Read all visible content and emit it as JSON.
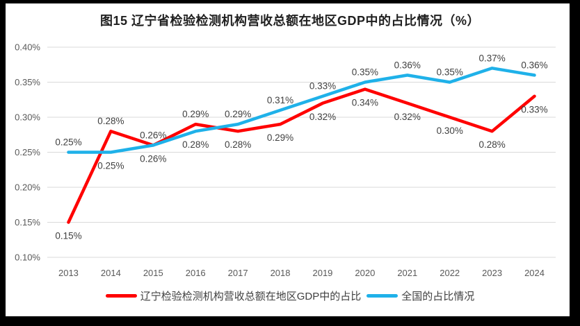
{
  "chart_data": {
    "type": "line",
    "title": "图15 辽宁省检验检测机构营收总额在地区GDP中的占比情况（%）",
    "categories": [
      "2013",
      "2014",
      "2015",
      "2016",
      "2017",
      "2018",
      "2019",
      "2020",
      "2021",
      "2022",
      "2023",
      "2024"
    ],
    "series": [
      {
        "name": "辽宁检验检测机构营收总额在地区GDP中的占比",
        "color": "#FF0000",
        "values": [
          0.15,
          0.28,
          0.26,
          0.29,
          0.28,
          0.29,
          0.32,
          0.34,
          0.32,
          0.3,
          0.28,
          0.33
        ],
        "labels": [
          "0.15%",
          "0.28%",
          "0.26%",
          "0.29%",
          "0.28%",
          "0.29%",
          "0.32%",
          "0.34%",
          "0.32%",
          "0.30%",
          "0.28%",
          "0.33%"
        ]
      },
      {
        "name": "全国的占比情况",
        "color": "#1FB1E9",
        "values": [
          0.25,
          0.25,
          0.26,
          0.28,
          0.29,
          0.31,
          0.33,
          0.35,
          0.36,
          0.35,
          0.37,
          0.36
        ],
        "labels": [
          "0.25%",
          "0.25%",
          "0.26%",
          "0.28%",
          "0.29%",
          "0.31%",
          "0.33%",
          "0.35%",
          "0.36%",
          "0.35%",
          "0.37%",
          "0.36%"
        ]
      }
    ],
    "y_ticks": [
      "0.40%",
      "0.35%",
      "0.30%",
      "0.25%",
      "0.20%",
      "0.15%",
      "0.10%"
    ],
    "ylim": [
      0.1,
      0.4
    ],
    "unit": "%",
    "grid": true,
    "data_labels": true,
    "legend_position": "bottom",
    "colors": {
      "grid": "#D9D9D9",
      "tick_text": "#595959",
      "data_label_text": "#3F3F3F",
      "frame_border": "#000000",
      "background": "#FFFFFF",
      "title_text": "#1F1F1F"
    }
  }
}
